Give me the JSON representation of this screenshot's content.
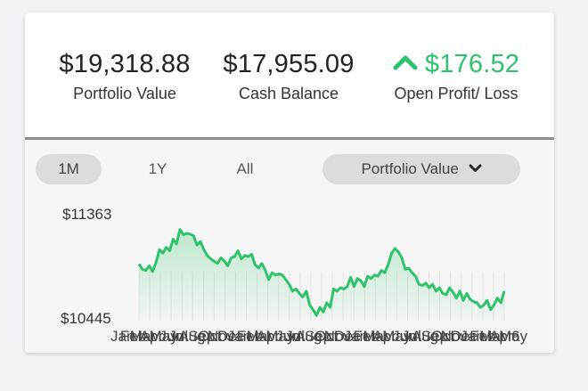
{
  "summary": {
    "portfolio_value": "$19,318.88",
    "portfolio_label": "Portfolio Value",
    "cash_balance": "$17,955.09",
    "cash_label": "Cash Balance",
    "open_pl": "$176.52",
    "open_pl_label": "Open Profit/ Loss",
    "open_pl_direction": "up",
    "positive_color": "#2ec36b"
  },
  "controls": {
    "ranges": [
      {
        "label": "1M",
        "active": true
      },
      {
        "label": "1Y",
        "active": false
      },
      {
        "label": "All",
        "active": false
      }
    ],
    "metric_selected": "Portfolio Value",
    "metric_icon": "chevron-down-icon"
  },
  "chart_data": {
    "type": "area",
    "title": "",
    "xlabel": "",
    "ylabel": "",
    "ytick_labels": [
      "$11363",
      "$10445"
    ],
    "ylim": [
      10445,
      11363
    ],
    "line_color": "#2ec36b",
    "x_tick_labels": [
      "Jan",
      "Feb",
      "Mar",
      "Apr",
      "May",
      "Jun",
      "Jul",
      "Aug",
      "Sep",
      "Oct",
      "Nov",
      "Dec",
      "Jan",
      "Feb",
      "Mar",
      "Apr",
      "May",
      "Jun",
      "Jul",
      "Aug",
      "Sep",
      "Oct",
      "Nov",
      "Dec",
      "Jan",
      "Feb",
      "Mar",
      "Apr",
      "May",
      "Jun",
      "Jul",
      "Aug",
      "Sep",
      "Oct",
      "Nov",
      "Dec",
      "Jan",
      "Feb",
      "Mar",
      "Apr",
      "May",
      "6"
    ],
    "values": [
      10935,
      10890,
      10880,
      10920,
      10870,
      10950,
      11060,
      11030,
      11080,
      11050,
      11150,
      11110,
      11235,
      11190,
      11200,
      11195,
      11180,
      11100,
      11130,
      11060,
      11010,
      10980,
      10960,
      10940,
      10990,
      10960,
      10920,
      10990,
      11000,
      11050,
      10980,
      11010,
      11000,
      11020,
      10930,
      10900,
      10940,
      10880,
      10800,
      10860,
      10840,
      10850,
      10840,
      10800,
      10760,
      10700,
      10720,
      10680,
      10650,
      10700,
      10580,
      10540,
      10490,
      10560,
      10520,
      10600,
      10560,
      10720,
      10700,
      10730,
      10720,
      10740,
      10820,
      10740,
      10810,
      10790,
      10740,
      10830,
      10810,
      10840,
      10830,
      10880,
      10860,
      10930,
      11030,
      11070,
      11040,
      10990,
      10890,
      10900,
      10860,
      10830,
      10760,
      10750,
      10770,
      10730,
      10760,
      10700,
      10730,
      10680,
      10670,
      10730,
      10690,
      10640,
      10700,
      10620,
      10680,
      10630,
      10610,
      10600,
      10560,
      10580,
      10620,
      10540,
      10580,
      10640,
      10600,
      10700
    ]
  }
}
